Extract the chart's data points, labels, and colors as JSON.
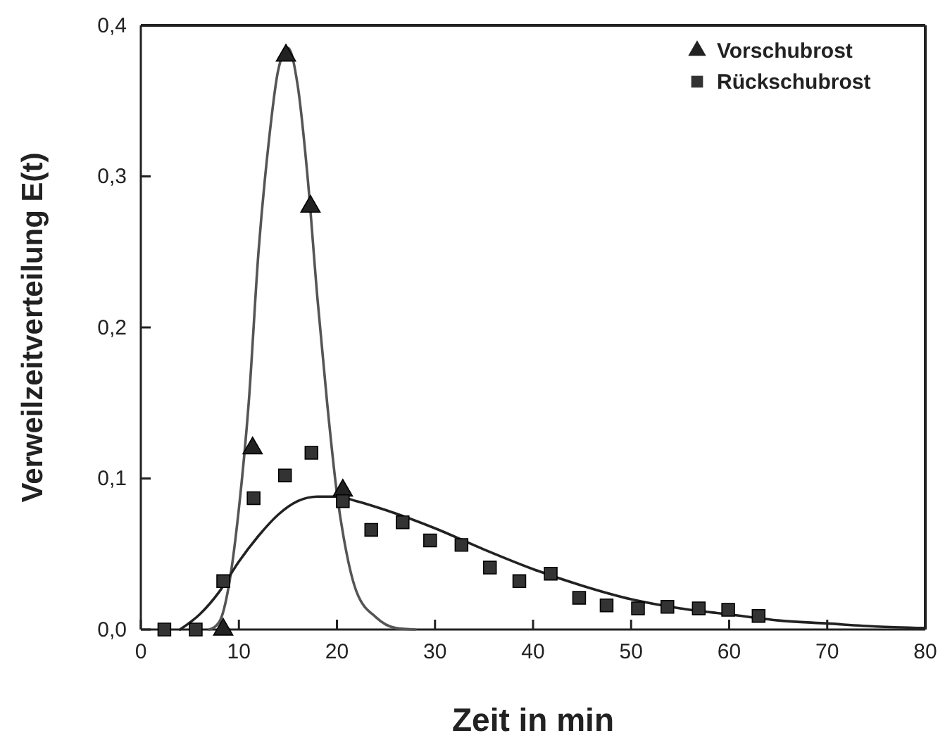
{
  "chart_data": {
    "type": "scatter",
    "xlabel": "Zeit in min",
    "ylabel": "Verweilzeitverteilung E(t)",
    "xlim": [
      0,
      80
    ],
    "ylim": [
      0,
      0.4
    ],
    "xticks": [
      0,
      10,
      20,
      30,
      40,
      50,
      60,
      70,
      80
    ],
    "yticks": [
      {
        "value": 0,
        "label": "0,0"
      },
      {
        "value": 0.1,
        "label": "0,1"
      },
      {
        "value": 0.2,
        "label": "0,2"
      },
      {
        "value": 0.3,
        "label": "0,3"
      },
      {
        "value": 0.4,
        "label": "0,4"
      }
    ],
    "grid": false,
    "legend": "top right",
    "series": [
      {
        "type": "line",
        "color": "#555555",
        "marker": "none",
        "x": [
          7,
          8,
          9,
          10,
          11,
          12,
          13,
          14,
          15,
          16,
          17,
          18,
          19,
          20,
          21,
          22,
          24,
          26,
          28
        ],
        "values": [
          0,
          0.005,
          0.03,
          0.08,
          0.15,
          0.25,
          0.32,
          0.37,
          0.385,
          0.36,
          0.3,
          0.22,
          0.15,
          0.09,
          0.05,
          0.025,
          0.008,
          0.001,
          0
        ]
      },
      {
        "type": "line",
        "color": "#222222",
        "marker": "none",
        "x": [
          4,
          6,
          8,
          10,
          12,
          14,
          16,
          18,
          20,
          22,
          25,
          30,
          35,
          40,
          45,
          50,
          55,
          60,
          65,
          70,
          75,
          80
        ],
        "values": [
          0,
          0.01,
          0.025,
          0.045,
          0.062,
          0.076,
          0.085,
          0.088,
          0.088,
          0.085,
          0.079,
          0.067,
          0.053,
          0.04,
          0.029,
          0.02,
          0.014,
          0.01,
          0.006,
          0.004,
          0.002,
          0.001
        ]
      },
      {
        "name": "Vorschubrost",
        "color": "#222222",
        "marker": "triangle",
        "x": [
          8.4,
          11.4,
          14.8,
          17.3,
          20.6
        ],
        "values": [
          0,
          0.12,
          0.38,
          0.28,
          0.092
        ]
      },
      {
        "name": "Rückschubrost",
        "color": "#333333",
        "marker": "square",
        "x": [
          2.4,
          5.6,
          8.4,
          11.5,
          14.7,
          17.4,
          20.6,
          23.5,
          26.7,
          29.5,
          32.7,
          35.6,
          38.6,
          41.8,
          44.7,
          47.5,
          50.7,
          53.7,
          56.9,
          59.9,
          63
        ],
        "values": [
          0,
          0,
          0.032,
          0.087,
          0.102,
          0.117,
          0.085,
          0.066,
          0.071,
          0.059,
          0.056,
          0.041,
          0.032,
          0.037,
          0.021,
          0.016,
          0.014,
          0.015,
          0.014,
          0.013,
          0.009
        ]
      }
    ]
  }
}
